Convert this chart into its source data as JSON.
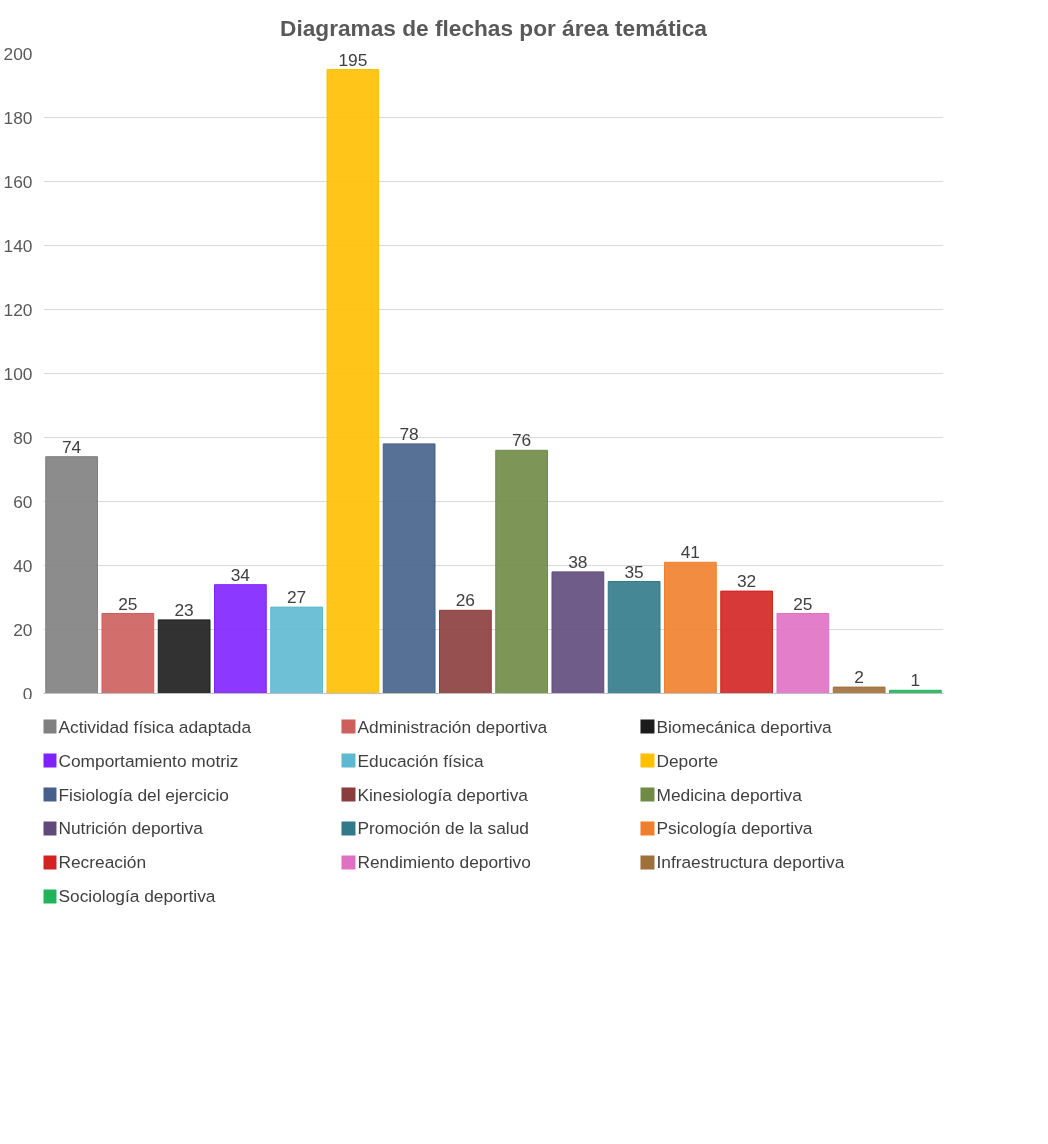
{
  "chart_data": {
    "type": "bar",
    "title": "Diagramas de flechas por área temática",
    "categories": [
      null,
      null,
      null,
      null,
      null,
      null,
      null,
      null,
      null,
      null,
      null,
      null,
      null,
      null,
      null,
      null
    ],
    "series": [
      {
        "name": "Actividad física adaptada",
        "color": "#808080",
        "values": [
          74,
          null,
          null,
          null,
          null,
          null,
          null,
          null,
          null,
          null,
          null,
          null,
          null,
          null,
          null,
          null
        ]
      },
      {
        "name": "Administración deportiva",
        "color": "#cd5f5c",
        "values": [
          null,
          25,
          null,
          null,
          null,
          null,
          null,
          null,
          null,
          null,
          null,
          null,
          null,
          null,
          null,
          null
        ]
      },
      {
        "name": "Biomecánica deportiva",
        "color": "#1c1c1c",
        "values": [
          null,
          null,
          23,
          null,
          null,
          null,
          null,
          null,
          null,
          null,
          null,
          null,
          null,
          null,
          null,
          null
        ]
      },
      {
        "name": "Comportamiento motriz",
        "color": "#7f22ff",
        "values": [
          null,
          null,
          null,
          34,
          null,
          null,
          null,
          null,
          null,
          null,
          null,
          null,
          null,
          null,
          null,
          null
        ]
      },
      {
        "name": "Educación física",
        "color": "#5db9d2",
        "values": [
          null,
          null,
          null,
          null,
          27,
          null,
          null,
          null,
          null,
          null,
          null,
          null,
          null,
          null,
          null,
          null
        ]
      },
      {
        "name": "Deporte",
        "color": "#ffc000",
        "values": [
          null,
          null,
          null,
          null,
          null,
          195,
          null,
          null,
          null,
          null,
          null,
          null,
          null,
          null,
          null,
          null
        ]
      },
      {
        "name": "Fisiología del ejercicio",
        "color": "#45608a",
        "values": [
          null,
          null,
          null,
          null,
          null,
          null,
          78,
          null,
          null,
          null,
          null,
          null,
          null,
          null,
          null,
          null
        ]
      },
      {
        "name": "Kinesiología deportiva",
        "color": "#8b3d3d",
        "values": [
          null,
          null,
          null,
          null,
          null,
          null,
          null,
          26,
          null,
          null,
          null,
          null,
          null,
          null,
          null,
          null
        ]
      },
      {
        "name": "Medicina deportiva",
        "color": "#6f8b45",
        "values": [
          null,
          null,
          null,
          null,
          null,
          null,
          null,
          null,
          76,
          null,
          null,
          null,
          null,
          null,
          null,
          null
        ]
      },
      {
        "name": "Nutrición deportiva",
        "color": "#604a7b",
        "values": [
          null,
          null,
          null,
          null,
          null,
          null,
          null,
          null,
          null,
          38,
          null,
          null,
          null,
          null,
          null,
          null
        ]
      },
      {
        "name": "Promoción de la salud",
        "color": "#327a8a",
        "values": [
          null,
          null,
          null,
          null,
          null,
          null,
          null,
          null,
          null,
          null,
          35,
          null,
          null,
          null,
          null,
          null
        ]
      },
      {
        "name": "Psicología deportiva",
        "color": "#f07f2c",
        "values": [
          null,
          null,
          null,
          null,
          null,
          null,
          null,
          null,
          null,
          null,
          null,
          41,
          null,
          null,
          null,
          null
        ]
      },
      {
        "name": "Recreación",
        "color": "#d32222",
        "values": [
          null,
          null,
          null,
          null,
          null,
          null,
          null,
          null,
          null,
          null,
          null,
          null,
          32,
          null,
          null,
          null
        ]
      },
      {
        "name": "Rendimiento deportivo",
        "color": "#e070c4",
        "values": [
          null,
          null,
          null,
          null,
          null,
          null,
          null,
          null,
          null,
          null,
          null,
          null,
          null,
          25,
          null,
          null
        ]
      },
      {
        "name": "Infraestructura deportiva",
        "color": "#a0703c",
        "values": [
          null,
          null,
          null,
          null,
          null,
          null,
          null,
          null,
          null,
          null,
          null,
          null,
          null,
          null,
          2,
          null
        ]
      },
      {
        "name": "Sociología deportiva",
        "color": "#22b45a",
        "values": [
          null,
          null,
          null,
          null,
          null,
          null,
          null,
          null,
          null,
          null,
          null,
          null,
          null,
          null,
          null,
          1
        ]
      }
    ],
    "ylim": [
      0,
      200
    ],
    "yticks": [
      0,
      20,
      40,
      60,
      80,
      100,
      120,
      140,
      160,
      180,
      200
    ],
    "grid": "y",
    "legend": "bottom",
    "data_labels": true
  }
}
